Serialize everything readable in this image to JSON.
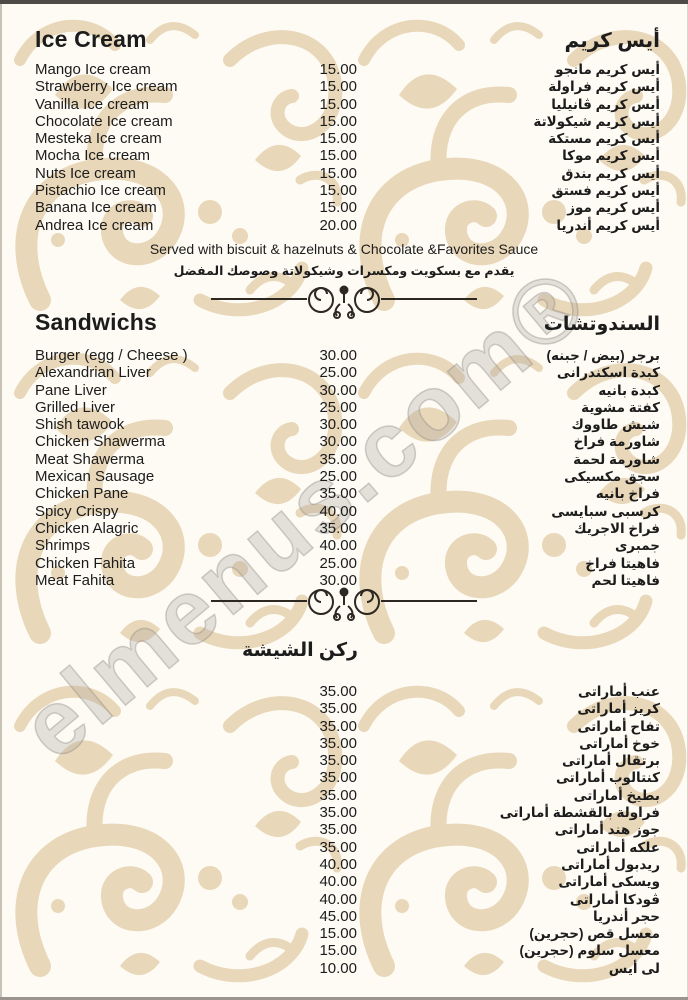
{
  "watermark": {
    "text": "elmenus.com®"
  },
  "colors": {
    "pattern_beige": "#e9d7b9",
    "text_dark": "#1c1c1c",
    "divider_ink": "#2e2823",
    "top_border": "#4e4a46"
  },
  "icons": {
    "divider": "flourish-divider-icon",
    "background": "damask-swirl-pattern"
  },
  "sections": [
    {
      "id": "ice-cream",
      "title_en": "Ice Cream",
      "title_ar": "أيس كريم",
      "items": [
        {
          "en": "Mango Ice cream",
          "price": "15.00",
          "ar": "أيس كريم مانجو"
        },
        {
          "en": "Strawberry Ice cream",
          "price": "15.00",
          "ar": "أيس كريم فراولة"
        },
        {
          "en": "Vanilla Ice cream",
          "price": "15.00",
          "ar": "أيس كريم ڤانيليا"
        },
        {
          "en": "Chocolate Ice cream",
          "price": "15.00",
          "ar": "أيس كريم شيكولاتة"
        },
        {
          "en": "Mesteka Ice cream",
          "price": "15.00",
          "ar": "أيس كريم مستكة"
        },
        {
          "en": "Mocha Ice cream",
          "price": "15.00",
          "ar": "أيس كريم موكا"
        },
        {
          "en": "Nuts Ice cream",
          "price": "15.00",
          "ar": "أيس كريم بندق"
        },
        {
          "en": "Pistachio Ice cream",
          "price": "15.00",
          "ar": "أيس كريم فستق"
        },
        {
          "en": "Banana Ice cream",
          "price": "15.00",
          "ar": "أيس كريم موز"
        },
        {
          "en": "Andrea Ice cream",
          "price": "20.00",
          "ar": "أيس كريم أندريا"
        }
      ],
      "note_en": "Served with biscuit & hazelnuts & Chocolate &Favorites Sauce",
      "note_ar": "يقدم مع بسكويت ومكسرات وشيكولاتة وصوصك المفضل"
    },
    {
      "id": "sandwichs",
      "title_en": "Sandwichs",
      "title_ar": "السندوتشات",
      "items": [
        {
          "en": "Burger (egg / Cheese )",
          "price": "30.00",
          "ar": "برجر (بيض / جبنه)"
        },
        {
          "en": "Alexandrian Liver",
          "price": "25.00",
          "ar": "كبدة اسكندرانى"
        },
        {
          "en": "Pane Liver",
          "price": "30.00",
          "ar": "كبدة بانيه"
        },
        {
          "en": "Grilled Liver",
          "price": "25.00",
          "ar": "كفتة مشوية"
        },
        {
          "en": "Shish tawook",
          "price": "30.00",
          "ar": "شيش طاووك"
        },
        {
          "en": "Chicken Shawerma",
          "price": "30.00",
          "ar": "شاورمة فراخ"
        },
        {
          "en": "Meat Shawerma",
          "price": "35.00",
          "ar": "شاورمة لحمة"
        },
        {
          "en": "Mexican Sausage",
          "price": "25.00",
          "ar": "سجق مكسيكى"
        },
        {
          "en": "Chicken Pane",
          "price": "35.00",
          "ar": "فراخ بانيه"
        },
        {
          "en": "Spicy Crispy",
          "price": "40.00",
          "ar": "كرسبى سبايسى"
        },
        {
          "en": "Chicken Alagric",
          "price": "35.00",
          "ar": "فراخ الاجريك"
        },
        {
          "en": "Shrimps",
          "price": "40.00",
          "ar": "جمبرى"
        },
        {
          "en": "Chicken Fahita",
          "price": "25.00",
          "ar": "فاهيتا فراخ"
        },
        {
          "en": "Meat Fahita",
          "price": "30.00",
          "ar": "فاهيتا لحم"
        }
      ]
    },
    {
      "id": "shisha",
      "title_ar": "ركن الشيشة",
      "items": [
        {
          "price": "35.00",
          "ar": "عنب أماراتى"
        },
        {
          "price": "35.00",
          "ar": "كريز أماراتى"
        },
        {
          "price": "35.00",
          "ar": "تفاح أماراتى"
        },
        {
          "price": "35.00",
          "ar": "خوخ أماراتى"
        },
        {
          "price": "35.00",
          "ar": "برتقال أماراتى"
        },
        {
          "price": "35.00",
          "ar": "كنتالوب أماراتى"
        },
        {
          "price": "35.00",
          "ar": "بطيخ أماراتى"
        },
        {
          "price": "35.00",
          "ar": "فراولة بالقشطة أماراتى"
        },
        {
          "price": "35.00",
          "ar": "جوز هند أماراتى"
        },
        {
          "price": "35.00",
          "ar": "علكه أماراتى"
        },
        {
          "price": "40.00",
          "ar": "ريدبول أماراتى"
        },
        {
          "price": "40.00",
          "ar": "ويسكى أماراتى"
        },
        {
          "price": "40.00",
          "ar": "ڤودكا أماراتى"
        },
        {
          "price": "45.00",
          "ar": "حجر أندريا"
        },
        {
          "price": "15.00",
          "ar": "معسل قص (حجرين)"
        },
        {
          "price": "15.00",
          "ar": "معسل سلوم (حجرين)"
        },
        {
          "price": "10.00",
          "ar": "لى أيس"
        }
      ]
    }
  ]
}
